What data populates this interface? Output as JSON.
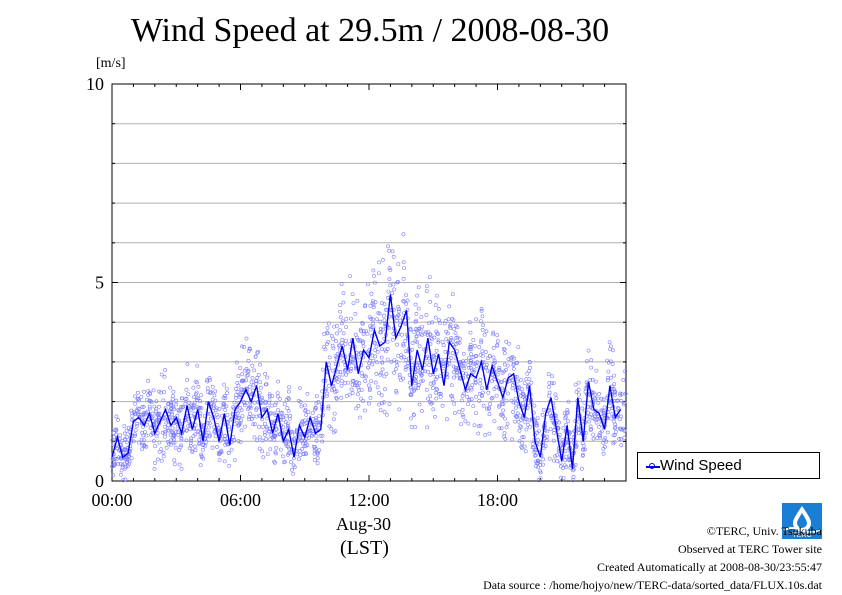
{
  "chart_data": {
    "type": "scatter",
    "title": "Wind Speed at 29.5m / 2008-08-30",
    "ylabel": "[m/s]",
    "ylim": [
      0,
      10
    ],
    "xlim_hours": [
      0,
      24
    ],
    "yticks": [
      "0",
      "5",
      "10"
    ],
    "xticks": [
      "00:00",
      "06:00",
      "12:00",
      "18:00"
    ],
    "xlabel_date": "Aug-30",
    "xlabel_tz": "(LST)",
    "series": [
      {
        "name": "Wind Speed",
        "color": "#0000ee",
        "hours": [
          0.0,
          0.25,
          0.5,
          0.75,
          1.0,
          1.25,
          1.5,
          1.75,
          2.0,
          2.25,
          2.5,
          2.75,
          3.0,
          3.25,
          3.5,
          3.75,
          4.0,
          4.25,
          4.5,
          4.75,
          5.0,
          5.25,
          5.5,
          5.75,
          6.0,
          6.25,
          6.5,
          6.75,
          7.0,
          7.25,
          7.5,
          7.75,
          8.0,
          8.25,
          8.5,
          8.75,
          9.0,
          9.25,
          9.5,
          9.75,
          10.0,
          10.25,
          10.5,
          10.75,
          11.0,
          11.25,
          11.5,
          11.75,
          12.0,
          12.25,
          12.5,
          12.75,
          13.0,
          13.25,
          13.5,
          13.75,
          14.0,
          14.25,
          14.5,
          14.75,
          15.0,
          15.25,
          15.5,
          15.75,
          16.0,
          16.25,
          16.5,
          16.75,
          17.0,
          17.25,
          17.5,
          17.75,
          18.0,
          18.25,
          18.5,
          18.75,
          19.0,
          19.25,
          19.5,
          19.75,
          20.0,
          20.25,
          20.5,
          20.75,
          21.0,
          21.25,
          21.5,
          21.75,
          22.0,
          22.25,
          22.5,
          22.75,
          23.0,
          23.25,
          23.5,
          23.75
        ],
        "values": [
          0.6,
          1.1,
          0.6,
          0.7,
          1.5,
          1.6,
          1.4,
          1.7,
          1.2,
          1.5,
          1.8,
          1.4,
          1.6,
          1.2,
          1.9,
          1.3,
          1.8,
          1.0,
          2.0,
          1.6,
          1.0,
          1.7,
          0.9,
          1.8,
          2.0,
          2.3,
          2.0,
          2.4,
          1.6,
          1.8,
          1.2,
          1.7,
          1.0,
          1.3,
          0.6,
          1.4,
          1.1,
          1.6,
          1.2,
          1.3,
          3.0,
          2.4,
          2.9,
          3.4,
          2.8,
          3.6,
          2.7,
          3.3,
          3.1,
          3.8,
          3.4,
          3.5,
          4.7,
          3.6,
          3.9,
          4.3,
          2.4,
          3.3,
          2.8,
          3.6,
          2.7,
          3.2,
          2.4,
          3.5,
          3.3,
          2.8,
          2.3,
          2.7,
          2.6,
          3.0,
          2.3,
          2.9,
          2.5,
          2.1,
          2.6,
          2.7,
          2.0,
          1.6,
          2.4,
          1.0,
          0.6,
          1.7,
          2.1,
          1.3,
          0.5,
          1.4,
          0.3,
          2.1,
          1.0,
          2.5,
          1.8,
          1.7,
          1.3,
          2.4,
          1.6,
          1.8
        ]
      }
    ]
  },
  "footer": {
    "copyright": "©TERC, Univ. Tsukuba",
    "observed": "Observed at TERC Tower site",
    "created": "Created Automatically at 2008-08-30/23:55:47",
    "source": "Data source : /home/hojyo/new/TERC-data/sorted_data/FLUX.10s.dat"
  },
  "logo_text": "TERC"
}
